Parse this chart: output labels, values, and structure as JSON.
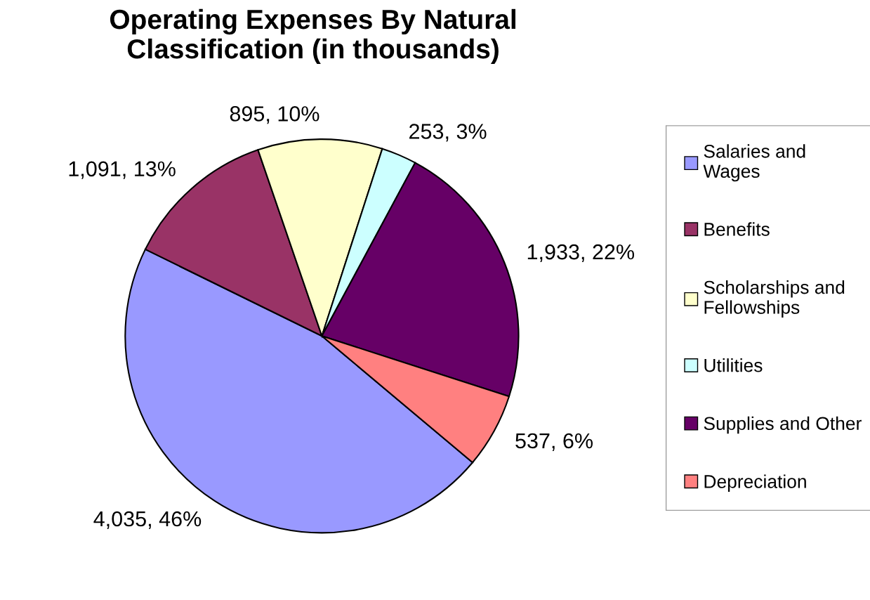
{
  "chart_data": {
    "type": "pie",
    "title": "Operating Expenses By Natural\nClassification (in thousands)",
    "categories": [
      "Salaries and\nWages",
      "Benefits",
      "Scholarships and\nFellowships",
      "Utilities",
      "Supplies and Other",
      "Depreciation"
    ],
    "values": [
      4035,
      1091,
      895,
      253,
      1933,
      537
    ],
    "colors": [
      "#9999ff",
      "#993366",
      "#ffffcc",
      "#ccffff",
      "#660066",
      "#ff8080"
    ],
    "value_labels": [
      "4,035, 46%",
      "1,091, 13%",
      "895, 10%",
      "253, 3%",
      "1,933, 22%",
      "537, 6%"
    ],
    "legend": "right"
  }
}
